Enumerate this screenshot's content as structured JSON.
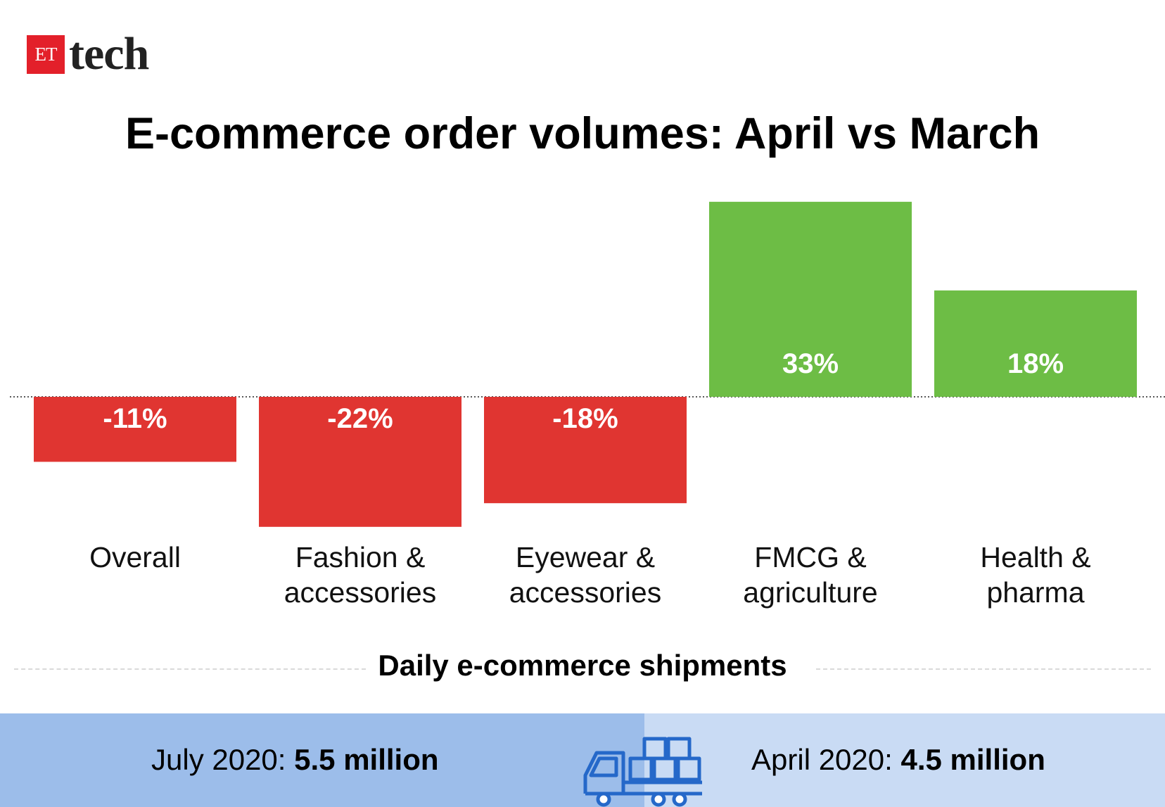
{
  "logo": {
    "box_text": "ET",
    "word": "tech"
  },
  "title": "E-commerce order volumes: April vs March",
  "colors": {
    "negative": "#e03531",
    "positive": "#6dbd45",
    "panel_left": "#9cbdea",
    "panel_right": "#c9dbf4",
    "brand": "#e3202a"
  },
  "chart_data": {
    "type": "bar",
    "title": "E-commerce order volumes: April vs March",
    "categories": [
      [
        "Overall"
      ],
      [
        "Fashion &",
        "accessories"
      ],
      [
        "Eyewear &",
        "accessories"
      ],
      [
        "FMCG &",
        "agriculture"
      ],
      [
        "Health &",
        "pharma"
      ]
    ],
    "values": [
      -11,
      -22,
      -18,
      33,
      18
    ],
    "value_labels": [
      "-11%",
      "-22%",
      "-18%",
      "33%",
      "18%"
    ],
    "unit": "%",
    "baseline": 0,
    "grid": false
  },
  "shipments": {
    "title": "Daily e-commerce shipments",
    "left_label": "July 2020: ",
    "left_value": "5.5 million",
    "right_label": "April 2020: ",
    "right_value": "4.5 million",
    "icon": "truck-with-boxes-icon"
  }
}
